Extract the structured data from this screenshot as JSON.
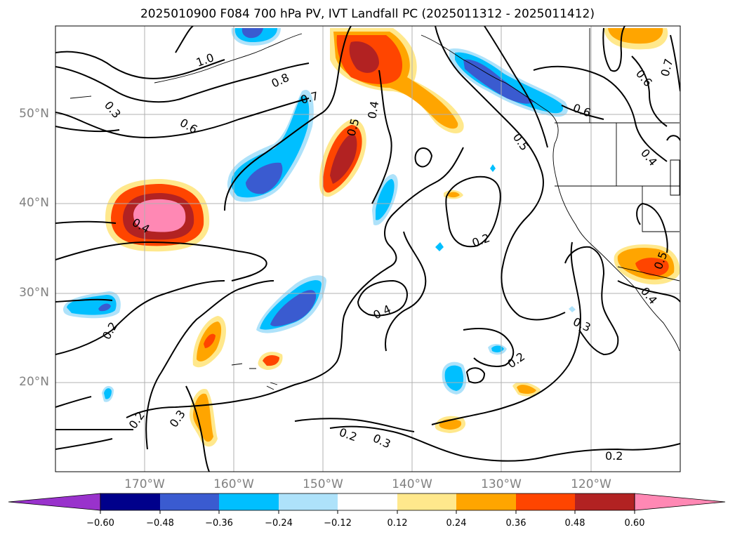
{
  "chart_data": {
    "type": "contour map",
    "title": "2025010900 F084 700 hPa PV, IVT Landfall PC (2025011312 - 2025011412)",
    "lat_ticks": [
      "50°N",
      "40°N",
      "30°N",
      "20°N"
    ],
    "lon_ticks": [
      "170°W",
      "160°W",
      "150°W",
      "140°W",
      "130°W",
      "120°W"
    ],
    "extent": {
      "lon": [
        -180,
        -110
      ],
      "lat": [
        10,
        60
      ]
    },
    "grid": true,
    "contour_labels": [
      "1.0",
      "0.8",
      "0.7",
      "0.6",
      "0.5",
      "0.4",
      "0.3",
      "0.2"
    ],
    "colorbar": {
      "levels": [
        "−0.60",
        "−0.48",
        "−0.36",
        "−0.24",
        "−0.12",
        "0.12",
        "0.24",
        "0.36",
        "0.48",
        "0.60"
      ],
      "colors": [
        "#9932cc",
        "#00008b",
        "#3a5bd0",
        "#00bfff",
        "#aee2fa",
        "#ffffff",
        "#ffe88c",
        "#ffa500",
        "#ff4500",
        "#b22222",
        "#ff88b4"
      ],
      "extend": "both"
    }
  }
}
